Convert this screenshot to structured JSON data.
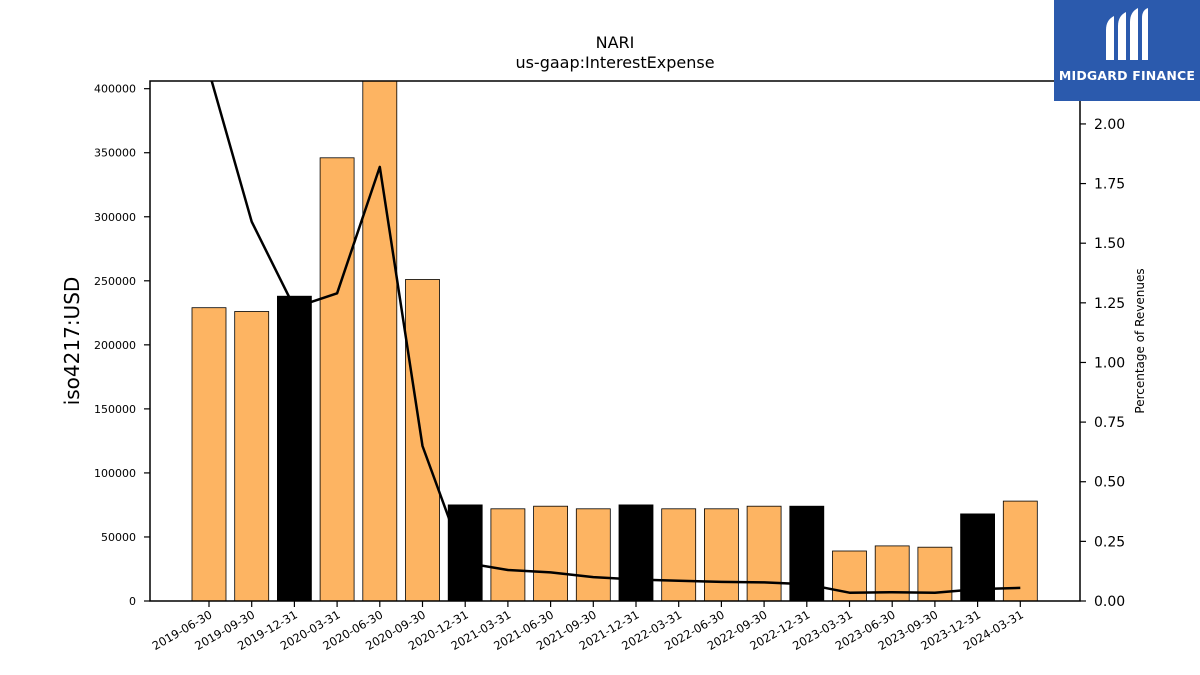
{
  "chart_data": {
    "type": "bar",
    "title": "NARI",
    "subtitle": "us-gaap:InterestExpense",
    "ylabel": "iso4217:USD",
    "y2label": "Percentage of Revenues",
    "categories": [
      "2019-06-30",
      "2019-09-30",
      "2019-12-31",
      "2020-03-31",
      "2020-06-30",
      "2020-09-30",
      "2020-12-31",
      "2021-03-31",
      "2021-06-30",
      "2021-09-30",
      "2021-12-31",
      "2022-03-31",
      "2022-06-30",
      "2022-09-30",
      "2022-12-31",
      "2023-03-31",
      "2023-06-30",
      "2023-09-30",
      "2023-12-31",
      "2024-03-31"
    ],
    "series": [
      {
        "values": [
          229000,
          226000,
          238000,
          346000,
          408000,
          251000,
          75000,
          72000,
          74000,
          72000,
          75000,
          72000,
          72000,
          74000,
          74000,
          39000,
          43000,
          42000,
          68000,
          78000
        ],
        "highlight": [
          false,
          false,
          true,
          false,
          false,
          false,
          true,
          false,
          false,
          false,
          true,
          false,
          false,
          false,
          true,
          false,
          false,
          false,
          true,
          false
        ]
      },
      {
        "values": [
          2.22,
          1.59,
          1.23,
          1.29,
          1.82,
          0.65,
          0.16,
          0.13,
          0.12,
          0.1,
          0.09,
          0.085,
          0.08,
          0.078,
          0.07,
          0.035,
          0.037,
          0.035,
          0.05,
          0.055
        ]
      }
    ],
    "ylim": [
      0,
      406000
    ],
    "y2lim": [
      0,
      2.18
    ],
    "yticks": [
      "0",
      "50000",
      "100000",
      "150000",
      "200000",
      "250000",
      "300000",
      "350000",
      "400000"
    ],
    "y2ticks": [
      "0.00",
      "0.25",
      "0.50",
      "0.75",
      "1.00",
      "1.25",
      "1.50",
      "1.75",
      "2.00"
    ],
    "colors": {
      "bar": "#fdb462",
      "bar_highlight": "#000000",
      "line": "#000000"
    }
  },
  "logo": {
    "text": "MIDGARD FINANCE",
    "icon": "midgard-logo-icon"
  }
}
